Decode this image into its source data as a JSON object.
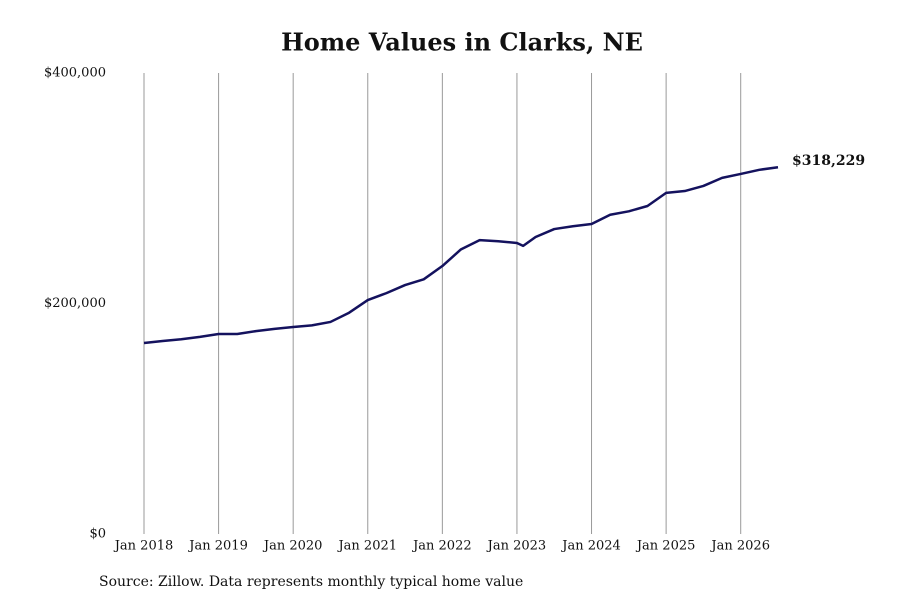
{
  "chart_data": {
    "type": "line",
    "title": "Home Values in Clarks, NE",
    "source": "Source: Zillow. Data represents monthly typical home value",
    "x": [
      "2018-01",
      "2018-04",
      "2018-07",
      "2018-10",
      "2019-01",
      "2019-04",
      "2019-07",
      "2019-10",
      "2020-01",
      "2020-04",
      "2020-07",
      "2020-10",
      "2021-01",
      "2021-04",
      "2021-07",
      "2021-10",
      "2022-01",
      "2022-04",
      "2022-07",
      "2022-10",
      "2023-01",
      "2023-02",
      "2023-04",
      "2023-07",
      "2023-10",
      "2024-01",
      "2024-04",
      "2024-07",
      "2024-10",
      "2025-01",
      "2025-04",
      "2025-07",
      "2025-10",
      "2026-01",
      "2026-04",
      "2026-07"
    ],
    "series": [
      {
        "name": "Home value",
        "color": "#14125e",
        "values": [
          165700,
          167500,
          169000,
          171000,
          173500,
          173500,
          176000,
          178000,
          179600,
          181000,
          184000,
          192000,
          203000,
          209000,
          216000,
          221000,
          232500,
          247000,
          255000,
          254000,
          252500,
          250000,
          257700,
          264600,
          267000,
          269000,
          277000,
          280000,
          284600,
          296000,
          297600,
          302000,
          309000,
          312400,
          316000,
          318229
        ],
        "value_labels": [
          null,
          null,
          null,
          null,
          null,
          null,
          null,
          null,
          null,
          null,
          null,
          null,
          null,
          null,
          null,
          null,
          null,
          null,
          null,
          null,
          null,
          null,
          null,
          null,
          null,
          null,
          null,
          null,
          null,
          null,
          null,
          null,
          null,
          null,
          null,
          "$318,229"
        ]
      }
    ],
    "xlim": [
      "2018-01",
      "2026-07"
    ],
    "xticks": [
      {
        "value": "2018-01",
        "label": "Jan 2018"
      },
      {
        "value": "2019-01",
        "label": "Jan 2019"
      },
      {
        "value": "2020-01",
        "label": "Jan 2020"
      },
      {
        "value": "2021-01",
        "label": "Jan 2021"
      },
      {
        "value": "2022-01",
        "label": "Jan 2022"
      },
      {
        "value": "2023-01",
        "label": "Jan 2023"
      },
      {
        "value": "2024-01",
        "label": "Jan 2024"
      },
      {
        "value": "2025-01",
        "label": "Jan 2025"
      },
      {
        "value": "2026-01",
        "label": "Jan 2026"
      }
    ],
    "ylim": [
      0,
      400000
    ],
    "yticks": [
      {
        "value": 0,
        "label": "$0"
      },
      {
        "value": 200000,
        "label": "$200,000"
      },
      {
        "value": 400000,
        "label": "$400,000"
      }
    ],
    "grid": true
  }
}
